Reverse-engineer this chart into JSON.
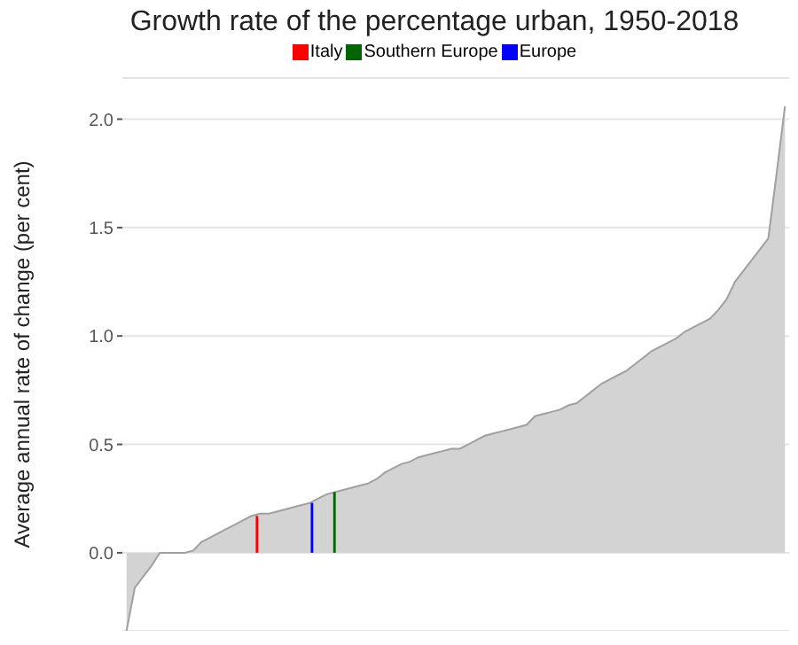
{
  "chart_data": {
    "type": "area",
    "title": "Growth rate of the percentage urban, 1950-2018",
    "ylabel": "Average annual rate of change (per cent)",
    "categories": [
      null,
      null,
      null,
      null,
      null,
      null,
      null,
      null,
      null,
      null,
      null,
      null,
      null,
      null,
      null,
      null,
      null,
      null,
      null,
      null,
      null,
      null,
      null,
      null,
      null,
      null,
      null,
      null,
      null,
      null,
      null,
      null,
      null,
      null,
      null,
      null,
      null,
      null,
      null,
      null,
      null,
      null,
      null,
      null,
      null,
      null,
      null,
      null,
      null,
      null,
      null,
      null,
      null,
      null,
      null,
      null,
      null,
      null,
      null,
      null,
      null,
      null,
      null,
      null,
      null,
      null,
      null,
      null,
      null,
      null,
      null,
      null,
      null,
      null,
      null,
      null,
      null,
      null,
      null,
      null
    ],
    "series": [
      {
        "color": "#d3d3d3",
        "values": [
          -0.36,
          -0.16,
          -0.11,
          -0.06,
          0,
          0,
          0,
          0,
          0.01,
          0.05,
          0.07,
          0.09,
          0.11,
          0.13,
          0.15,
          0.17,
          0.18,
          0.18,
          0.19,
          0.2,
          0.21,
          0.22,
          0.23,
          0.25,
          0.27,
          0.28,
          0.29,
          0.3,
          0.31,
          0.32,
          0.34,
          0.37,
          0.39,
          0.41,
          0.42,
          0.44,
          0.45,
          0.46,
          0.47,
          0.48,
          0.48,
          0.5,
          0.52,
          0.54,
          0.55,
          0.56,
          0.57,
          0.58,
          0.59,
          0.63,
          0.64,
          0.65,
          0.66,
          0.68,
          0.69,
          0.72,
          0.75,
          0.78,
          0.8,
          0.82,
          0.84,
          0.87,
          0.9,
          0.93,
          0.95,
          0.97,
          0.99,
          1.02,
          1.04,
          1.06,
          1.08,
          1.12,
          1.17,
          1.25,
          1.3,
          1.35,
          1.4,
          1.45,
          1.75,
          2.06
        ]
      },
      {
        "type": "bar",
        "name": "Italy",
        "color": "#ff0000",
        "values": [
          null,
          null,
          null,
          null,
          null,
          null,
          null,
          null,
          null,
          null,
          null,
          null,
          null,
          null,
          null,
          null,
          0.17,
          null,
          null,
          null,
          null,
          null,
          null,
          null,
          null,
          null,
          null,
          null,
          null,
          null,
          null,
          null,
          null,
          null,
          null,
          null,
          null,
          null,
          null,
          null,
          null,
          null,
          null,
          null,
          null,
          null,
          null,
          null,
          null,
          null,
          null,
          null,
          null,
          null,
          null,
          null,
          null,
          null,
          null,
          null,
          null,
          null,
          null,
          null,
          null,
          null,
          null,
          null,
          null,
          null,
          null,
          null,
          null,
          null,
          null,
          null,
          null,
          null,
          null,
          null
        ]
      },
      {
        "type": "bar",
        "name": "Southern Europe",
        "color": "#006400",
        "values": [
          null,
          null,
          null,
          null,
          null,
          null,
          null,
          null,
          null,
          null,
          null,
          null,
          null,
          null,
          null,
          null,
          null,
          null,
          null,
          null,
          null,
          null,
          null,
          null,
          null,
          0.28,
          null,
          null,
          null,
          null,
          null,
          null,
          null,
          null,
          null,
          null,
          null,
          null,
          null,
          null,
          null,
          null,
          null,
          null,
          null,
          null,
          null,
          null,
          null,
          null,
          null,
          null,
          null,
          null,
          null,
          null,
          null,
          null,
          null,
          null,
          null,
          null,
          null,
          null,
          null,
          null,
          null,
          null,
          null,
          null,
          null,
          null,
          null,
          null,
          null,
          null,
          null,
          null,
          null,
          null
        ]
      },
      {
        "type": "bar",
        "name": "Europe",
        "color": "#0000ff",
        "values": [
          null,
          null,
          null,
          null,
          null,
          null,
          null,
          null,
          null,
          null,
          null,
          null,
          null,
          null,
          null,
          null,
          null,
          null,
          null,
          null,
          null,
          null,
          0.23,
          null,
          null,
          null,
          null,
          null,
          null,
          null,
          null,
          null,
          null,
          null,
          null,
          null,
          null,
          null,
          null,
          null,
          null,
          null,
          null,
          null,
          null,
          null,
          null,
          null,
          null,
          null,
          null,
          null,
          null,
          null,
          null,
          null,
          null,
          null,
          null,
          null,
          null,
          null,
          null,
          null,
          null,
          null,
          null,
          null,
          null,
          null,
          null,
          null,
          null,
          null,
          null,
          null,
          null,
          null,
          null,
          null
        ]
      }
    ],
    "ylim": [
      -0.36,
      2.19
    ],
    "yticks": [
      {
        "value": 0,
        "label": "0.0"
      },
      {
        "value": 0.5,
        "label": "0.5"
      },
      {
        "value": 1,
        "label": "1.0"
      },
      {
        "value": 1.5,
        "label": "1.5"
      },
      {
        "value": 2,
        "label": "2.0"
      }
    ],
    "grid": "y",
    "legend": "top",
    "tick_labels": "y"
  }
}
